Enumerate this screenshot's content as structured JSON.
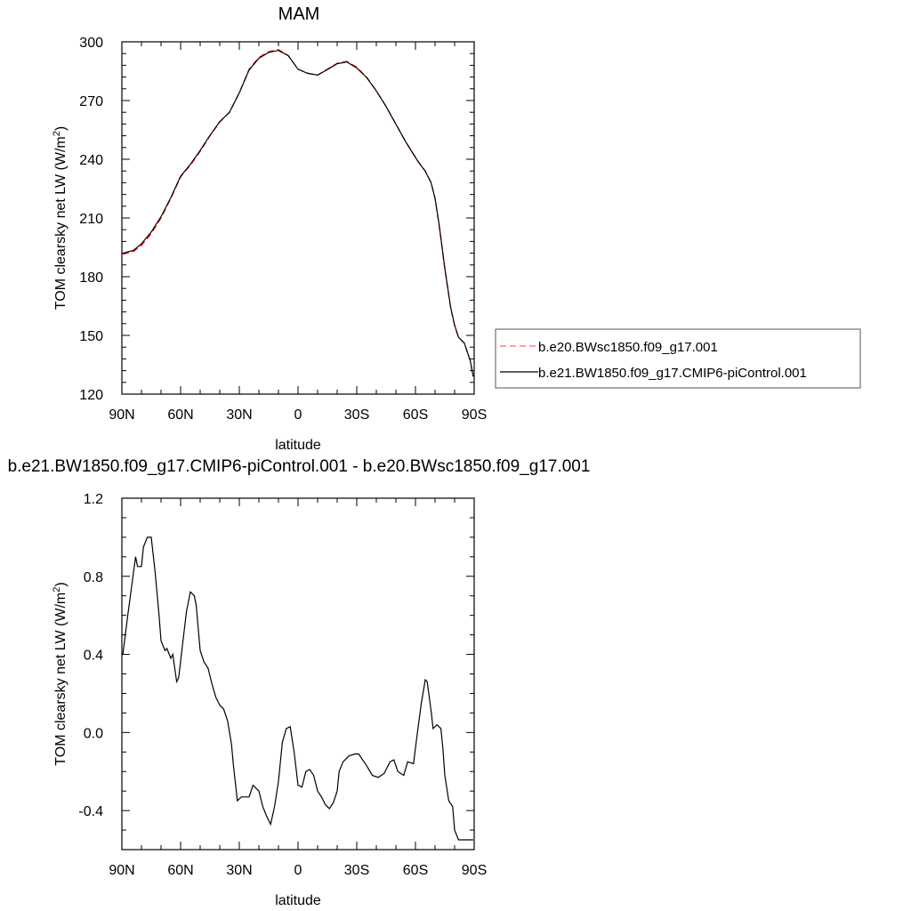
{
  "chart_data": [
    {
      "type": "line",
      "title": "MAM",
      "xlabel": "latitude",
      "ylabel": "TOM clearsky net LW (W/m",
      "ylabel_sup": "2",
      "ylabel_close": ")",
      "xlim": [
        90,
        -90
      ],
      "ylim": [
        120,
        300
      ],
      "xticks": [
        {
          "value": 90,
          "label": "90N"
        },
        {
          "value": 60,
          "label": "60N"
        },
        {
          "value": 30,
          "label": "30N"
        },
        {
          "value": 0,
          "label": "0"
        },
        {
          "value": -30,
          "label": "30S"
        },
        {
          "value": -60,
          "label": "60S"
        },
        {
          "value": -90,
          "label": "90S"
        }
      ],
      "yticks": [
        {
          "value": 300,
          "label": "300"
        },
        {
          "value": 270,
          "label": "270"
        },
        {
          "value": 240,
          "label": "240"
        },
        {
          "value": 210,
          "label": "210"
        },
        {
          "value": 180,
          "label": "180"
        },
        {
          "value": 150,
          "label": "150"
        },
        {
          "value": 120,
          "label": "120"
        }
      ],
      "grid": false,
      "legend_position": "right",
      "series": [
        {
          "name": "b.e20.BWsc1850.f09_g17.001",
          "color": "#ff0000",
          "dash": "dashed",
          "x": [
            89.5,
            84,
            80,
            75,
            70,
            65,
            60,
            55,
            50,
            45,
            40,
            35,
            30,
            25,
            20,
            15,
            10,
            5,
            0,
            -5,
            -10,
            -15,
            -20,
            -25,
            -30,
            -35,
            -40,
            -45,
            -50,
            -55,
            -60,
            -62,
            -65,
            -68,
            -70,
            -72,
            -75,
            -78,
            -80,
            -82,
            -85,
            -88,
            -89.5
          ],
          "values": [
            191.5,
            193,
            196,
            202,
            210,
            220,
            231,
            237,
            244,
            252,
            259,
            264,
            274,
            286,
            292,
            295,
            296,
            293,
            286,
            284,
            283,
            286,
            289,
            290,
            287,
            282,
            275,
            267,
            258,
            249,
            241,
            238,
            234,
            228,
            220,
            207,
            184,
            164,
            155,
            149,
            146,
            137,
            129
          ]
        },
        {
          "name": "b.e21.BW1850.f09_g17.CMIP6-piControl.001",
          "color": "#000000",
          "dash": "solid",
          "x": [
            89.5,
            84,
            80,
            75,
            70,
            65,
            60,
            55,
            50,
            45,
            40,
            35,
            30,
            25,
            20,
            15,
            10,
            5,
            0,
            -5,
            -10,
            -15,
            -20,
            -25,
            -30,
            -35,
            -40,
            -45,
            -50,
            -55,
            -60,
            -62,
            -65,
            -68,
            -70,
            -72,
            -75,
            -78,
            -80,
            -82,
            -85,
            -88,
            -89.5
          ],
          "values": [
            192,
            193.5,
            196.8,
            202.8,
            210.7,
            220.4,
            231.3,
            237.4,
            244.5,
            252.2,
            259.2,
            264.1,
            273.9,
            285.6,
            291.6,
            294.6,
            295.6,
            292.9,
            286,
            283.8,
            283,
            285.8,
            288.8,
            289.7,
            286.7,
            281.8,
            274.9,
            266.9,
            257.9,
            248.9,
            240.9,
            237.8,
            233.9,
            227.9,
            220,
            207.3,
            184.3,
            164.2,
            155.2,
            149.1,
            146,
            137,
            129
          ]
        }
      ]
    },
    {
      "type": "line",
      "title": "b.e21.BW1850.f09_g17.CMIP6-piControl.001 - b.e20.BWsc1850.f09_g17.001",
      "xlabel": "latitude",
      "ylabel": "TOM clearsky net LW (W/m",
      "ylabel_sup": "2",
      "ylabel_close": ")",
      "xlim": [
        90,
        -90
      ],
      "ylim": [
        -0.6,
        1.2
      ],
      "xticks": [
        {
          "value": 90,
          "label": "90N"
        },
        {
          "value": 60,
          "label": "60N"
        },
        {
          "value": 30,
          "label": "30N"
        },
        {
          "value": 0,
          "label": "0"
        },
        {
          "value": -30,
          "label": "30S"
        },
        {
          "value": -60,
          "label": "60S"
        },
        {
          "value": -90,
          "label": "90S"
        }
      ],
      "yticks": [
        {
          "value": 1.2,
          "label": "1.2"
        },
        {
          "value": 0.8,
          "label": "0.8"
        },
        {
          "value": 0.4,
          "label": "0.4"
        },
        {
          "value": 0,
          "label": "0.0"
        },
        {
          "value": -0.4,
          "label": "-0.4"
        }
      ],
      "grid": false,
      "series": [
        {
          "color": "#000000",
          "dash": "solid",
          "x": [
            89.5,
            87,
            85,
            83,
            82,
            80,
            79,
            77,
            75,
            73,
            71,
            70,
            68,
            67,
            65,
            64,
            62,
            61,
            59,
            57,
            55,
            53,
            52,
            50,
            48,
            46,
            44,
            42,
            40,
            38,
            36,
            34,
            33,
            31,
            29,
            27,
            25,
            23,
            20,
            18,
            16,
            14,
            12,
            10,
            8,
            6,
            4,
            2,
            0,
            -2,
            -4,
            -6,
            -8,
            -10,
            -12,
            -14,
            -16,
            -18,
            -20,
            -21,
            -23,
            -26,
            -29,
            -31,
            -33,
            -35,
            -38,
            -41,
            -44,
            -47,
            -49,
            -51,
            -54,
            -56,
            -59,
            -61,
            -63,
            -65,
            -66,
            -68,
            -69,
            -71,
            -73,
            -74,
            -75,
            -77,
            -79,
            -80,
            -82,
            -84,
            -86,
            -88,
            -89.5
          ],
          "values": [
            0.4,
            0.6,
            0.75,
            0.9,
            0.85,
            0.85,
            0.95,
            1.0,
            1.0,
            0.82,
            0.6,
            0.47,
            0.42,
            0.43,
            0.38,
            0.4,
            0.26,
            0.28,
            0.45,
            0.62,
            0.72,
            0.7,
            0.65,
            0.42,
            0.36,
            0.33,
            0.25,
            0.18,
            0.14,
            0.12,
            0.06,
            -0.06,
            -0.17,
            -0.35,
            -0.33,
            -0.33,
            -0.33,
            -0.27,
            -0.3,
            -0.38,
            -0.43,
            -0.47,
            -0.38,
            -0.25,
            -0.05,
            0.02,
            0.03,
            -0.1,
            -0.27,
            -0.28,
            -0.2,
            -0.19,
            -0.22,
            -0.3,
            -0.33,
            -0.37,
            -0.39,
            -0.36,
            -0.3,
            -0.2,
            -0.15,
            -0.12,
            -0.11,
            -0.11,
            -0.14,
            -0.17,
            -0.22,
            -0.23,
            -0.21,
            -0.15,
            -0.14,
            -0.2,
            -0.22,
            -0.15,
            -0.16,
            0.0,
            0.15,
            0.27,
            0.26,
            0.11,
            0.02,
            0.04,
            0.02,
            -0.08,
            -0.22,
            -0.35,
            -0.38,
            -0.5,
            -0.55,
            -0.55,
            -0.55,
            -0.55,
            -0.55
          ]
        }
      ]
    }
  ]
}
